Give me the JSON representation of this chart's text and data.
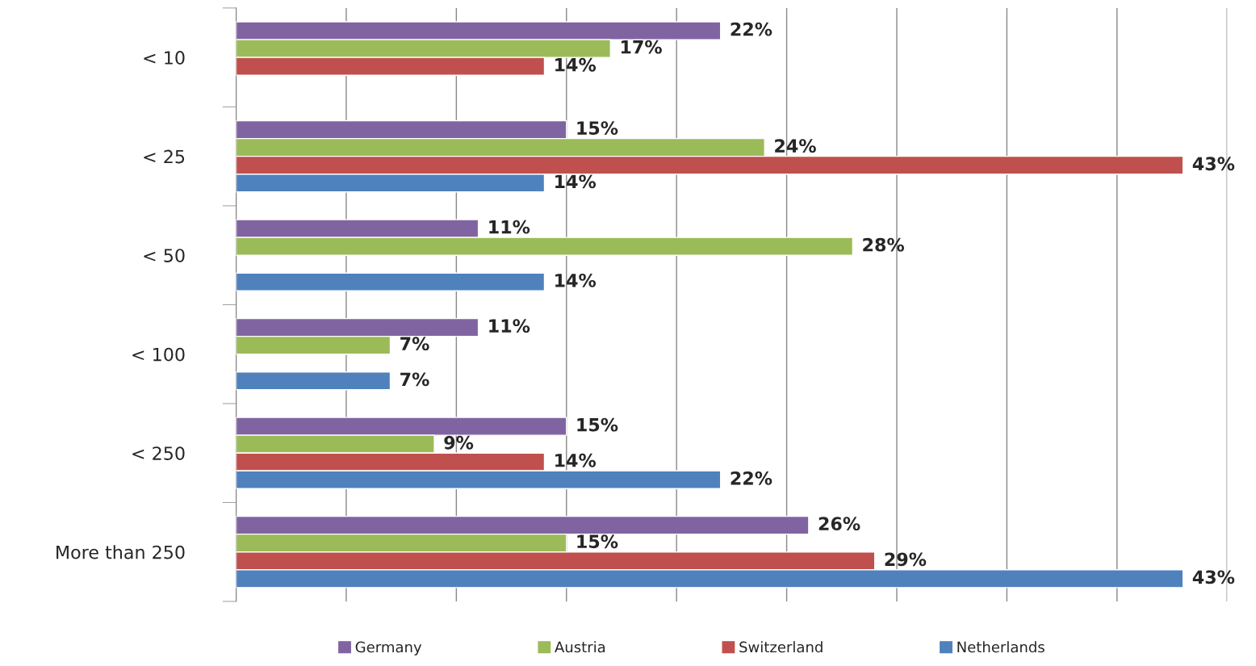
{
  "chart_data": {
    "type": "bar",
    "orientation": "horizontal",
    "categories": [
      "< 10",
      "< 25",
      "< 50",
      "< 100",
      "< 250",
      "More than 250"
    ],
    "series": [
      {
        "name": "Germany",
        "color": "#8064a2",
        "values": [
          22,
          15,
          11,
          11,
          15,
          26
        ],
        "value_labels": [
          "22%",
          "15%",
          "11%",
          "11%",
          "15%",
          "26%"
        ]
      },
      {
        "name": "Austria",
        "color": "#9bbb59",
        "values": [
          17,
          24,
          28,
          7,
          9,
          15
        ],
        "value_labels": [
          "17%",
          "24%",
          "28%",
          "7%",
          "9%",
          "15%"
        ]
      },
      {
        "name": "Switzerland",
        "color": "#c0504d",
        "values": [
          14,
          43,
          null,
          null,
          14,
          29
        ],
        "value_labels": [
          "14%",
          "43%",
          null,
          null,
          "14%",
          "29%"
        ]
      },
      {
        "name": "Netherlands",
        "color": "#4f81bd",
        "values": [
          null,
          14,
          14,
          7,
          22,
          43
        ],
        "value_labels": [
          null,
          "14%",
          "14%",
          "7%",
          "22%",
          "43%"
        ]
      }
    ],
    "xlim": [
      0,
      45
    ],
    "xticks": [
      {
        "value": 0,
        "label": null
      },
      {
        "value": 5,
        "label": null
      },
      {
        "value": 10,
        "label": null
      },
      {
        "value": 15,
        "label": null
      },
      {
        "value": 20,
        "label": null
      },
      {
        "value": 25,
        "label": null
      },
      {
        "value": 30,
        "label": null
      },
      {
        "value": 35,
        "label": null
      },
      {
        "value": 40,
        "label": null
      },
      {
        "value": 45,
        "label": null
      }
    ],
    "grid": "x",
    "legend": "bottom"
  }
}
